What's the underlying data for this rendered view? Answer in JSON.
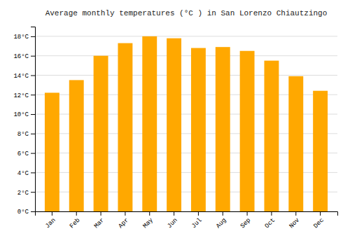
{
  "chart_data": {
    "type": "bar",
    "title": "Average monthly temperatures (°C ) in San Lorenzo Chiautzingo",
    "categories": [
      "Jan",
      "Feb",
      "Mar",
      "Apr",
      "May",
      "Jun",
      "Jul",
      "Aug",
      "Sep",
      "Oct",
      "Nov",
      "Dec"
    ],
    "values": [
      12.2,
      13.5,
      16.0,
      17.3,
      18.0,
      17.8,
      16.8,
      16.9,
      16.5,
      15.5,
      13.9,
      12.4
    ],
    "color": "#FFA800",
    "ylim": [
      0,
      19
    ],
    "yticks": [
      {
        "value": 0,
        "label": "0°C"
      },
      {
        "value": 2,
        "label": "2°C"
      },
      {
        "value": 4,
        "label": "4°C"
      },
      {
        "value": 6,
        "label": "6°C"
      },
      {
        "value": 8,
        "label": "8°C"
      },
      {
        "value": 10,
        "label": "10°C"
      },
      {
        "value": 12,
        "label": "12°C"
      },
      {
        "value": 14,
        "label": "14°C"
      },
      {
        "value": 16,
        "label": "16°C"
      },
      {
        "value": 18,
        "label": "18°C"
      }
    ],
    "grid": true
  }
}
